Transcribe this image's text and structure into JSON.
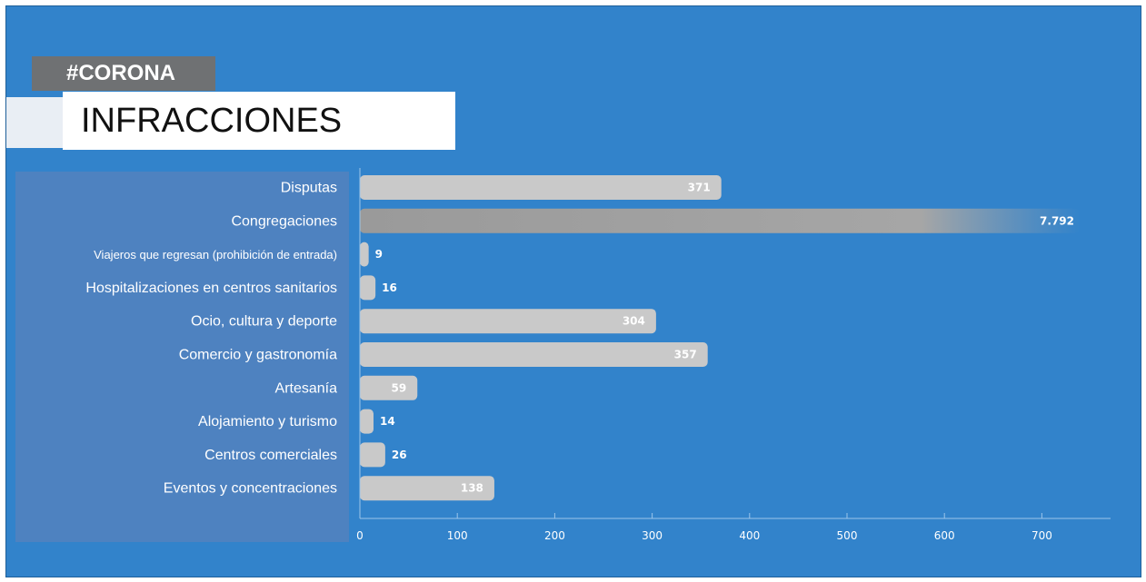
{
  "header": {
    "tag": "#CORONA",
    "title": "INFRACCIONES"
  },
  "colors": {
    "background": "#3283cb",
    "label_panel": "#4e82c0",
    "bar": "#c9c9c9",
    "bar_highlight": "#9a9a9a",
    "value_text": "#ffffff",
    "axis": "#9cc5ea"
  },
  "chart_data": {
    "type": "bar",
    "orientation": "horizontal",
    "categories": [
      "Disputas",
      "Congregaciones",
      "Viajeros que regresan (prohibición de entrada)",
      "Hospitalizaciones en centros sanitarios",
      "Ocio, cultura y deporte",
      "Comercio y gastronomía",
      "Artesanía",
      "Alojamiento y turismo",
      "Centros comerciales",
      "Eventos y concentraciones"
    ],
    "values": [
      371,
      7792,
      9,
      16,
      304,
      357,
      59,
      14,
      26,
      138
    ],
    "value_labels": [
      "371",
      "7.792",
      "9",
      "16",
      "304",
      "357",
      "59",
      "14",
      "26",
      "138"
    ],
    "xlim": [
      0,
      750
    ],
    "xticks": [
      0,
      100,
      200,
      300,
      400,
      500,
      600,
      700
    ],
    "xtick_labels": [
      "0",
      "100",
      "200",
      "300",
      "400",
      "500",
      "600",
      "700"
    ],
    "grid": false,
    "legend": "none"
  }
}
